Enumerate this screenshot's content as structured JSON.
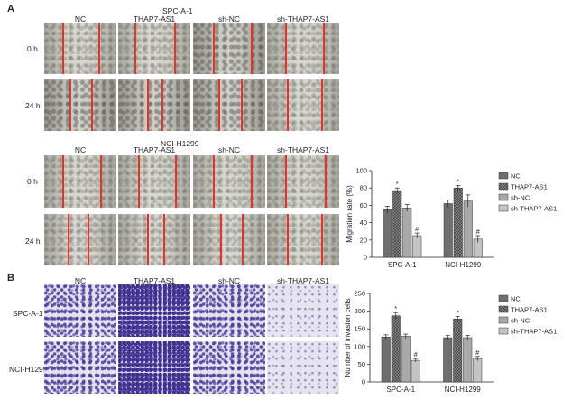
{
  "panels": {
    "a_letter": "A",
    "b_letter": "B"
  },
  "wound": {
    "columns": [
      "NC",
      "THAP7-AS1",
      "sh-NC",
      "sh-THAP7-AS1"
    ],
    "rows": [
      "0 h",
      "24 h"
    ],
    "cell_lines": [
      "SPC-A-1",
      "NCI-H1299"
    ]
  },
  "invasion": {
    "columns": [
      "NC",
      "THAP7-AS1",
      "sh-NC",
      "sh-THAP7-AS1"
    ],
    "rows": [
      "SPC-A-1",
      "NCI-H1299"
    ]
  },
  "colors": {
    "nc": "#6f6f6f",
    "thap7": "#8c8c8c",
    "shnc": "#a9a9a9",
    "shthap7": "#c4c4c4",
    "scratch_line": "#e0352b"
  },
  "chart_data": [
    {
      "type": "bar",
      "categories": [
        "SPC-A-1",
        "NCI-H1299"
      ],
      "series": [
        {
          "name": "NC",
          "values": [
            55,
            62
          ],
          "errors": [
            4,
            4
          ]
        },
        {
          "name": "THAP7-AS1",
          "values": [
            77,
            80
          ],
          "errors": [
            3,
            3
          ]
        },
        {
          "name": "sh-NC",
          "values": [
            57,
            65
          ],
          "errors": [
            4,
            7
          ]
        },
        {
          "name": "sh-THAP7-AS1",
          "values": [
            25,
            21
          ],
          "errors": [
            3,
            4
          ]
        }
      ],
      "annotations": [
        "*",
        "#",
        "*",
        "#"
      ],
      "ylabel": "Migration rate (%)",
      "ylim": [
        0,
        100
      ],
      "yticks": [
        "0",
        "20",
        "40",
        "60",
        "80",
        "100"
      ],
      "legend": "right"
    },
    {
      "type": "bar",
      "categories": [
        "SPC-A-1",
        "NCI-H1299"
      ],
      "series": [
        {
          "name": "NC",
          "values": [
            127,
            125
          ],
          "errors": [
            6,
            6
          ]
        },
        {
          "name": "THAP7-AS1",
          "values": [
            187,
            178
          ],
          "errors": [
            9,
            7
          ]
        },
        {
          "name": "sh-NC",
          "values": [
            129,
            125
          ],
          "errors": [
            6,
            6
          ]
        },
        {
          "name": "sh-THAP7-AS1",
          "values": [
            61,
            66
          ],
          "errors": [
            5,
            6
          ]
        }
      ],
      "annotations": [
        "*",
        "#",
        "*",
        "#"
      ],
      "ylabel": "Number of invasion cells",
      "ylim": [
        0,
        250
      ],
      "yticks": [
        "0",
        "50",
        "100",
        "150",
        "200",
        "250"
      ],
      "legend": "right"
    }
  ]
}
